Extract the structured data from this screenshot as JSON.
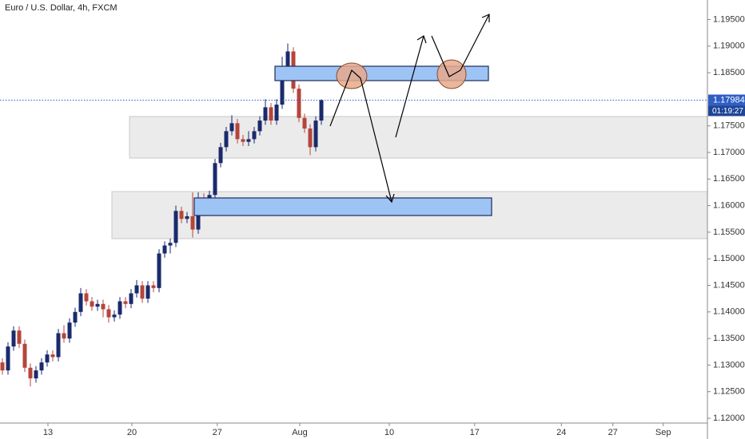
{
  "chart_data": {
    "type": "candlestick",
    "title": "Euro / U.S. Dollar, 4h, FXCM",
    "open": [
      1.1305,
      1.129,
      1.1335,
      1.1365,
      1.134,
      1.1295,
      1.1275,
      1.129,
      1.1305,
      1.132,
      1.1315,
      1.136,
      1.135,
      1.138,
      1.14,
      1.1435,
      1.142,
      1.141,
      1.1415,
      1.1405,
      1.139,
      1.1395,
      1.142,
      1.1415,
      1.1435,
      1.145,
      1.1425,
      1.145,
      1.1445,
      1.151,
      1.1525,
      1.153,
      1.159,
      1.1575,
      1.158,
      1.1555,
      1.1615,
      1.16,
      1.162,
      1.168,
      1.171,
      1.174,
      1.1755,
      1.1725,
      1.172,
      1.1725,
      1.174,
      1.176,
      1.1785,
      1.176,
      1.179,
      1.186,
      1.189,
      1.182,
      1.1765,
      1.1745,
      1.171,
      1.176
    ],
    "high": [
      1.1313,
      1.1343,
      1.1373,
      1.1373,
      1.1348,
      1.1303,
      1.1298,
      1.1313,
      1.1328,
      1.1328,
      1.1368,
      1.1375,
      1.1388,
      1.1408,
      1.1445,
      1.1443,
      1.1428,
      1.1423,
      1.1423,
      1.1413,
      1.1403,
      1.1428,
      1.1428,
      1.1443,
      1.146,
      1.1458,
      1.1458,
      1.1458,
      1.1518,
      1.1533,
      1.1538,
      1.16,
      1.1598,
      1.1588,
      1.1625,
      1.1625,
      1.1623,
      1.1628,
      1.1688,
      1.1718,
      1.1748,
      1.177,
      1.1763,
      1.1733,
      1.174,
      1.1748,
      1.1768,
      1.18,
      1.1793,
      1.18,
      1.188,
      1.1905,
      1.1898,
      1.1828,
      1.1773,
      1.1753,
      1.1768,
      1.18
    ],
    "low": [
      1.1282,
      1.1282,
      1.1327,
      1.1332,
      1.1287,
      1.126,
      1.1267,
      1.1282,
      1.1297,
      1.1307,
      1.1307,
      1.1342,
      1.1342,
      1.1372,
      1.1392,
      1.1412,
      1.1402,
      1.1402,
      1.139,
      1.138,
      1.1382,
      1.1387,
      1.1407,
      1.1407,
      1.1427,
      1.1417,
      1.1417,
      1.1437,
      1.1437,
      1.1502,
      1.151,
      1.1522,
      1.1567,
      1.1567,
      1.154,
      1.1547,
      1.158,
      1.1592,
      1.1612,
      1.1672,
      1.1702,
      1.1732,
      1.1717,
      1.1712,
      1.1712,
      1.1717,
      1.1732,
      1.1752,
      1.1752,
      1.1752,
      1.1782,
      1.1852,
      1.1812,
      1.1757,
      1.1737,
      1.1695,
      1.1702,
      1.1752
    ],
    "close": [
      1.129,
      1.1335,
      1.1365,
      1.134,
      1.1295,
      1.1275,
      1.129,
      1.1305,
      1.132,
      1.1315,
      1.136,
      1.135,
      1.138,
      1.14,
      1.1435,
      1.142,
      1.141,
      1.1415,
      1.1405,
      1.139,
      1.1395,
      1.142,
      1.1415,
      1.1435,
      1.145,
      1.1425,
      1.145,
      1.1445,
      1.151,
      1.1525,
      1.153,
      1.159,
      1.1575,
      1.158,
      1.1555,
      1.1615,
      1.16,
      1.162,
      1.168,
      1.171,
      1.174,
      1.1755,
      1.1725,
      1.172,
      1.1725,
      1.174,
      1.176,
      1.1785,
      1.176,
      1.179,
      1.186,
      1.189,
      1.182,
      1.1765,
      1.1745,
      1.171,
      1.176,
      1.17984
    ],
    "up_color": "#1a2a6c",
    "down_color": "#b5453a",
    "last_price": 1.17984,
    "countdown": "01:19:27",
    "price_line_color": "#2f5fc4",
    "xlim": [
      -0.43,
      126
    ],
    "xticks": [
      {
        "value": 8.14,
        "label": "13"
      },
      {
        "value": 23.14,
        "label": "20"
      },
      {
        "value": 38.4,
        "label": "27"
      },
      {
        "value": 53.14,
        "label": "Aug"
      },
      {
        "value": 69.14,
        "label": "10"
      },
      {
        "value": 84.4,
        "label": "17"
      },
      {
        "value": 99.9,
        "label": "24"
      },
      {
        "value": 109.1,
        "label": "27"
      },
      {
        "value": 118.1,
        "label": "Sep"
      }
    ],
    "ylim": [
      1.1191,
      1.19868
    ],
    "yticks": [
      {
        "value": 1.12,
        "label": "1.12000"
      },
      {
        "value": 1.125,
        "label": "1.12500"
      },
      {
        "value": 1.13,
        "label": "1.13000"
      },
      {
        "value": 1.135,
        "label": "1.13500"
      },
      {
        "value": 1.14,
        "label": "1.14000"
      },
      {
        "value": 1.145,
        "label": "1.14500"
      },
      {
        "value": 1.15,
        "label": "1.15000"
      },
      {
        "value": 1.155,
        "label": "1.15500"
      },
      {
        "value": 1.16,
        "label": "1.16000"
      },
      {
        "value": 1.165,
        "label": "1.16500"
      },
      {
        "value": 1.17,
        "label": "1.17000"
      },
      {
        "value": 1.175,
        "label": "1.17500"
      },
      {
        "value": 1.185,
        "label": "1.18500"
      },
      {
        "value": 1.19,
        "label": "1.19000"
      },
      {
        "value": 1.195,
        "label": "1.19500"
      }
    ],
    "grid": false
  }
}
